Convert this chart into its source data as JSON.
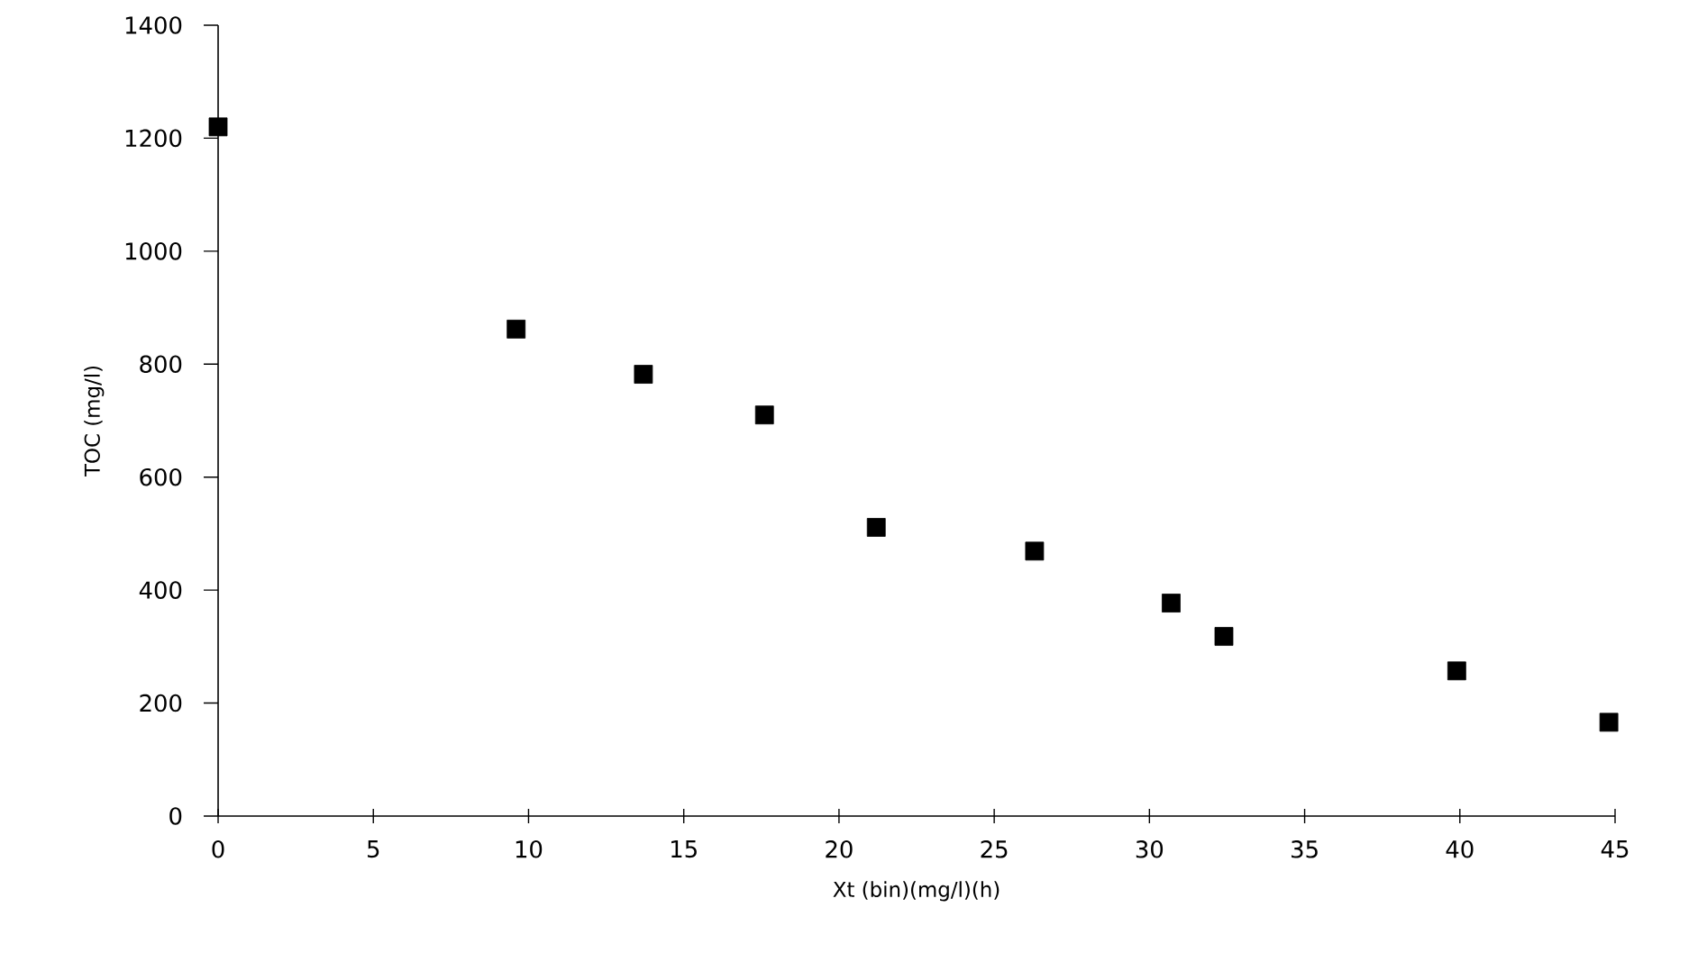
{
  "chart_data": {
    "type": "scatter",
    "xlabel": "Xt (bin)(mg/l)(h)",
    "ylabel": "TOC (mg/l)",
    "x": [
      0,
      9.6,
      13.7,
      17.6,
      21.2,
      26.3,
      30.7,
      32.4,
      39.9,
      44.8
    ],
    "values": [
      1220,
      862,
      782,
      710,
      511,
      469,
      377,
      318,
      257,
      166
    ],
    "color": "#000000",
    "marker": "square",
    "xlim": [
      0,
      45
    ],
    "ylim": [
      0,
      1400
    ],
    "xticks": [
      0,
      5,
      10,
      15,
      20,
      25,
      30,
      35,
      40,
      45
    ],
    "yticks": [
      0,
      200,
      400,
      600,
      800,
      1000,
      1200,
      1400
    ],
    "grid": false
  }
}
